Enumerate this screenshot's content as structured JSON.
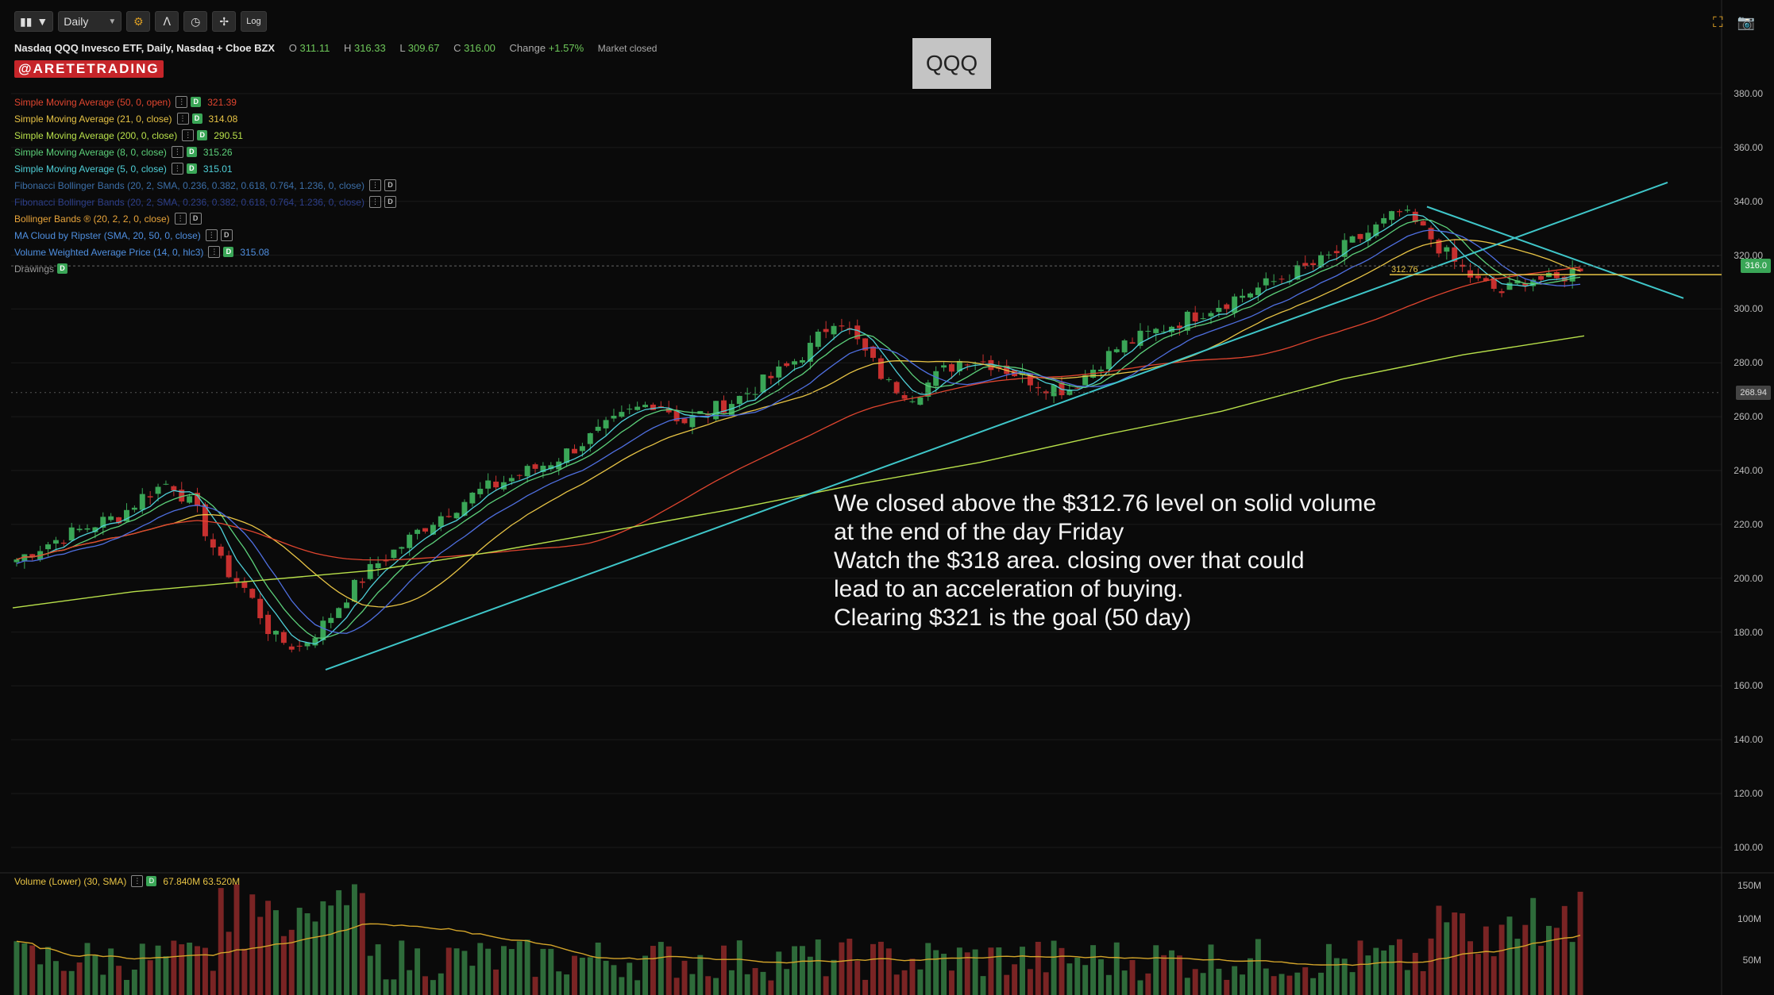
{
  "toolbar": {
    "chart_type_icon": "candles-icon",
    "interval": "Daily",
    "settings_icon": "gear-icon",
    "log_label": "Log"
  },
  "header": {
    "title": "Nasdaq QQQ Invesco ETF, Daily, Nasdaq + Cboe BZX",
    "open_label": "O",
    "open": "311.11",
    "high_label": "H",
    "high": "316.33",
    "low_label": "L",
    "low": "309.67",
    "close_label": "C",
    "close": "316.00",
    "change_label": "Change",
    "change": "+1.57%",
    "status": "Market closed"
  },
  "brand_tag": "@ARETETRADING",
  "symbol_box": "QQQ",
  "indicators": [
    {
      "label": "Simple Moving Average (50, 0, open)",
      "value": "321.39",
      "color": "#e0452f"
    },
    {
      "label": "Simple Moving Average (21, 0, close)",
      "value": "314.08",
      "color": "#e8c445"
    },
    {
      "label": "Simple Moving Average (200, 0, close)",
      "value": "290.51",
      "color": "#b8e04a"
    },
    {
      "label": "Simple Moving Average (8, 0, close)",
      "value": "315.26",
      "color": "#5cd07a"
    },
    {
      "label": "Simple Moving Average (5, 0, close)",
      "value": "315.01",
      "color": "#4fd0d8"
    },
    {
      "label": "Fibonacci Bollinger Bands (20, 2, SMA, 0.236, 0.382, 0.618, 0.764, 1.236, 0, close)",
      "value": "",
      "color": "#3c6fa8"
    },
    {
      "label": "Fibonacci Bollinger Bands (20, 2, SMA, 0.236, 0.382, 0.618, 0.764, 1.236, 0, close)",
      "value": "",
      "color": "#2d3f8a"
    },
    {
      "label": "Bollinger Bands ® (20, 2, 2, 0, close)",
      "value": "",
      "color": "#e8a43a"
    },
    {
      "label": "MA Cloud by Ripster (SMA, 20, 50, 0, close)",
      "value": "",
      "color": "#4f8fe0"
    },
    {
      "label": "Volume Weighted Average Price (14, 0, hlc3)",
      "value": "315.08",
      "color": "#4f8fe0"
    },
    {
      "label": "Drawings",
      "value": "",
      "color": "#999999"
    }
  ],
  "price_axis": {
    "labels": [
      "380.00",
      "360.00",
      "340.00",
      "320.00",
      "300.00",
      "280.00",
      "260.00",
      "240.00",
      "220.00",
      "200.00",
      "180.00",
      "160.00",
      "140.00",
      "120.00",
      "100.00"
    ],
    "last_price_tag": "316.0",
    "crosshair_tag": "268.94",
    "level_label": "312.76"
  },
  "volume_axis": {
    "labels": [
      "150M",
      "100M",
      "50M"
    ]
  },
  "volume_panel": {
    "label": "Volume (Lower) (30, SMA)",
    "value": "67.840M 63.520M"
  },
  "annotation": [
    "We closed above the $312.76 level on solid volume",
    "at the end of the day Friday",
    "Watch the $318 area. closing over that could",
    "lead to an acceleration of buying.",
    "Clearing $321 is the goal (50 day)"
  ],
  "chart_data": {
    "type": "line",
    "ylim": [
      90,
      390
    ],
    "ylabel": "",
    "series": [
      {
        "values": [
          207,
          212,
          216,
          220,
          223,
          231,
          236,
          225,
          205,
          195,
          178,
          174,
          183,
          195,
          205,
          212,
          220,
          226,
          232,
          236,
          240,
          244,
          250,
          256,
          262,
          266,
          258,
          262,
          266,
          272,
          278,
          286,
          298,
          285,
          272,
          268,
          276,
          282,
          280,
          276,
          272,
          270,
          278,
          286,
          290,
          294,
          298,
          302,
          306,
          310,
          314,
          318,
          324,
          330,
          336,
          328,
          318,
          310,
          306,
          312,
          310,
          316
        ]
      },
      {
        "name": "Simple Moving Average (200, 0, close)",
        "values": [
          189,
          195,
          199,
          203,
          210,
          218,
          226,
          235,
          243,
          253,
          262,
          274,
          283,
          290
        ]
      }
    ],
    "trendlines": [
      {
        "from": [
          0.31,
          166
        ],
        "to": [
          1.13,
          348
        ],
        "note": "rising support line"
      },
      {
        "from": [
          0.88,
          340
        ],
        "to": [
          1.05,
          304
        ],
        "note": "descending resistance line"
      }
    ],
    "horizontal_level": 312.76
  },
  "colors": {
    "up": "#3aa657",
    "down": "#c7302f",
    "trendline": "#3fc6c9",
    "sma50": "#e0452f",
    "sma200": "#b8e04a",
    "level": "#e8c445",
    "accent": "#d79b23"
  }
}
